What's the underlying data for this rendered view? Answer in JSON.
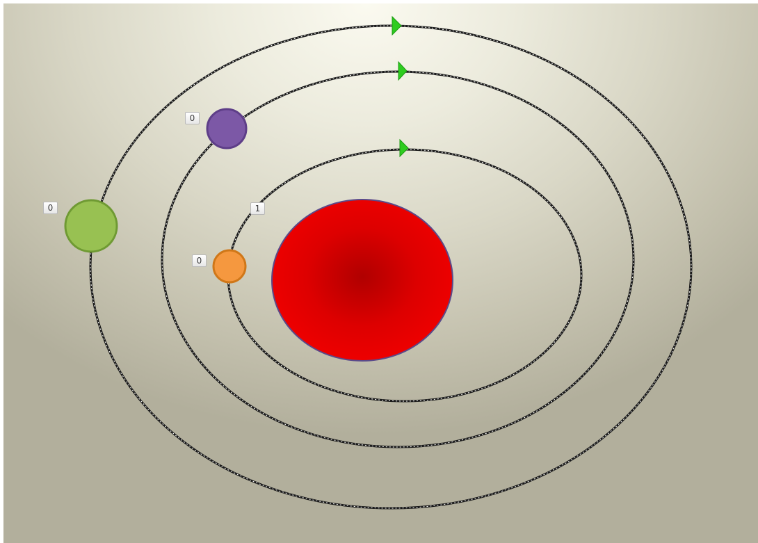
{
  "colors": {
    "orbit_stroke": "#1a1a1a",
    "orbit_dash": "#ffffff",
    "marker_fill": "#2ecc1f",
    "sun_center": "#b80000",
    "sun_edge": "#ee0000",
    "sun_outline": "#5a4a8a"
  },
  "orbits": [
    {
      "name": "inner-orbit",
      "marker": "green-triangle-marker"
    },
    {
      "name": "middle-orbit",
      "marker": "green-triangle-marker"
    },
    {
      "name": "outer-orbit",
      "marker": "green-triangle-marker"
    }
  ],
  "planets": [
    {
      "name": "orange-planet",
      "fill": "#f5983f",
      "stroke": "#d07718",
      "label": "0"
    },
    {
      "name": "purple-planet",
      "fill": "#7c58a6",
      "stroke": "#5e3e88",
      "label": "0"
    },
    {
      "name": "green-planet",
      "fill": "#98c152",
      "stroke": "#6f9a33",
      "label": "0"
    }
  ],
  "inner_orbit_label": "1"
}
